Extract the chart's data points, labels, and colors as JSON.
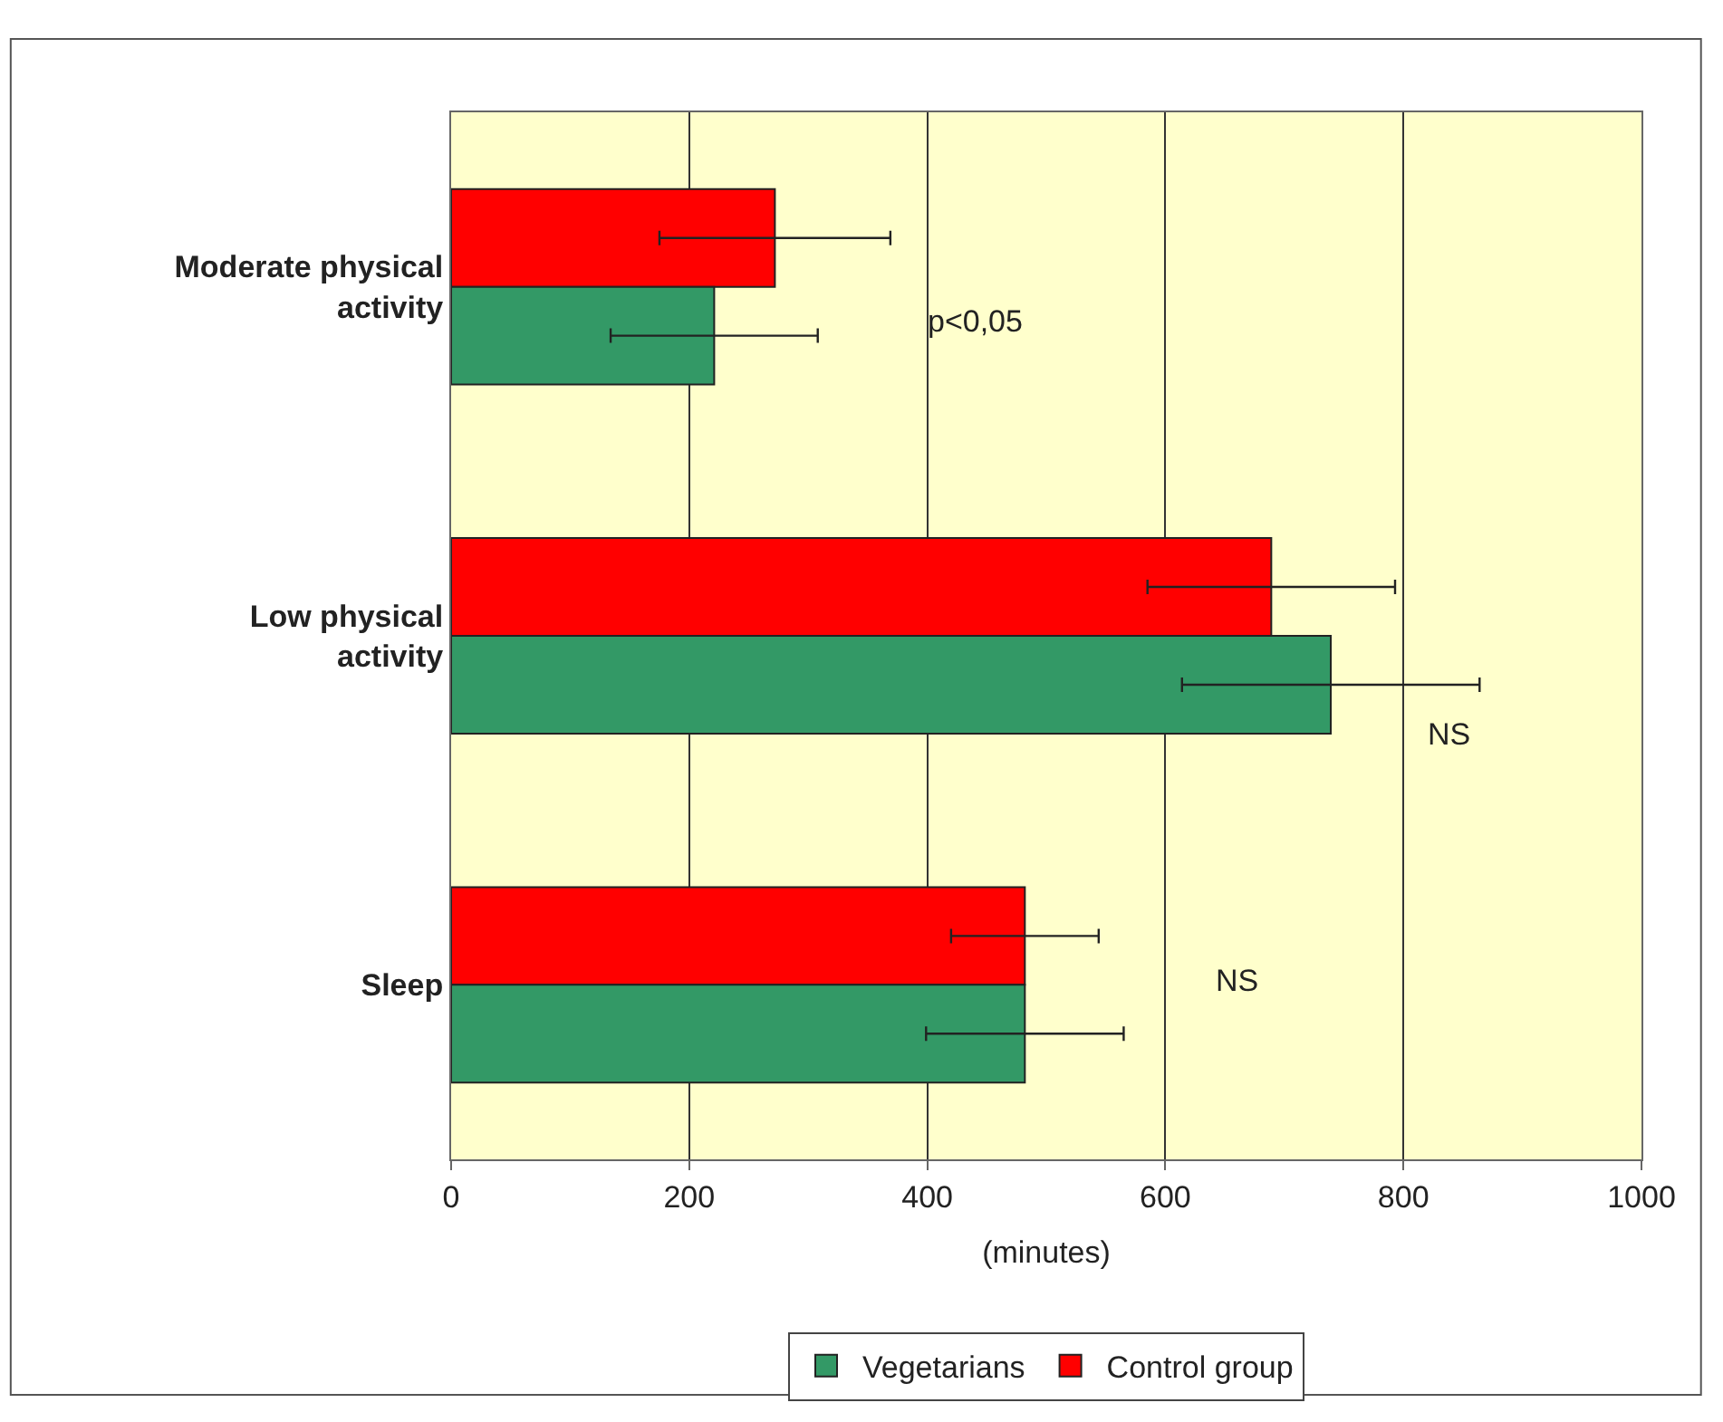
{
  "chart_data": {
    "type": "bar",
    "orientation": "horizontal",
    "xlabel": "(minutes)",
    "categories": [
      "Moderate physical activity",
      "Low physical activity",
      "Sleep"
    ],
    "series": [
      {
        "name": "Vegetarians",
        "color": "#339966",
        "values": [
          221,
          739,
          482
        ],
        "errors": [
          87,
          125,
          83
        ]
      },
      {
        "name": "Control group",
        "color": "#ff0000",
        "values": [
          272,
          689,
          482
        ],
        "errors": [
          97,
          104,
          62
        ]
      }
    ],
    "xlim": [
      0,
      1000
    ],
    "xticks": [
      0,
      200,
      400,
      600,
      800,
      1000
    ],
    "grid": "x",
    "legend": "bottom",
    "annotations": [
      "p<0,05",
      "NS",
      "NS"
    ]
  }
}
